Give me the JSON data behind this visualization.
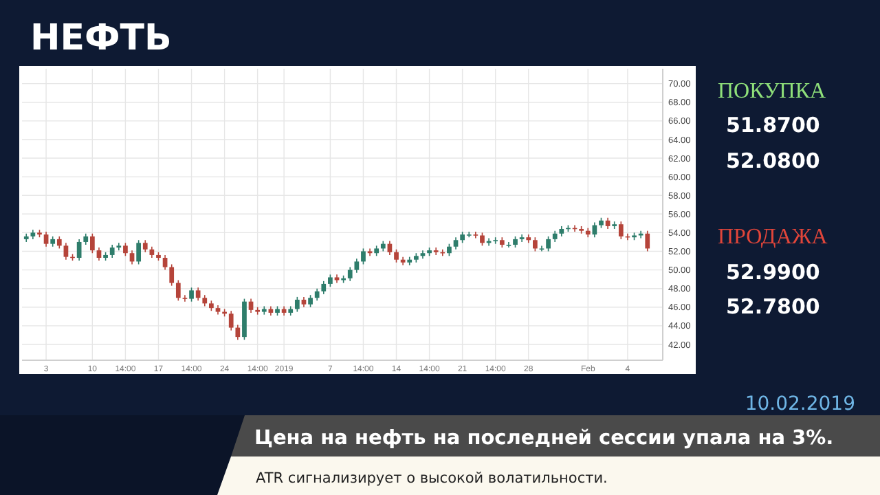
{
  "chart_data": {
    "type": "candlestick",
    "title": "НЕФТЬ",
    "categories": [
      null,
      null,
      null,
      "3",
      null,
      null,
      null,
      null,
      null,
      null,
      "10",
      null,
      null,
      null,
      null,
      "14:00",
      null,
      null,
      null,
      null,
      "17",
      null,
      null,
      null,
      null,
      "14:00",
      null,
      null,
      null,
      null,
      "24",
      null,
      null,
      null,
      null,
      "14:00",
      null,
      null,
      null,
      "2019",
      null,
      null,
      null,
      null,
      null,
      null,
      "7",
      null,
      null,
      null,
      null,
      "14:00",
      null,
      null,
      null,
      null,
      "14",
      null,
      null,
      null,
      null,
      "14:00",
      null,
      null,
      null,
      null,
      "21",
      null,
      null,
      null,
      null,
      "14:00",
      null,
      null,
      null,
      null,
      "28",
      null,
      null,
      null,
      null,
      null,
      null,
      null,
      null,
      "Feb",
      null,
      null,
      null,
      null,
      null,
      "4",
      null,
      null,
      null
    ],
    "ohlc": [
      [
        53.3,
        53.9,
        53.0,
        53.6
      ],
      [
        53.6,
        54.3,
        53.3,
        54.0
      ],
      [
        54.0,
        54.3,
        53.5,
        53.8
      ],
      [
        53.8,
        54.1,
        52.5,
        52.8
      ],
      [
        52.8,
        53.6,
        52.5,
        53.3
      ],
      [
        53.3,
        53.6,
        52.3,
        52.6
      ],
      [
        52.6,
        52.9,
        51.1,
        51.4
      ],
      [
        51.4,
        51.7,
        51.0,
        51.3
      ],
      [
        51.3,
        53.3,
        51.0,
        53.0
      ],
      [
        53.0,
        53.9,
        52.7,
        53.6
      ],
      [
        53.6,
        53.9,
        51.8,
        52.1
      ],
      [
        52.1,
        52.4,
        51.0,
        51.3
      ],
      [
        51.3,
        51.9,
        51.0,
        51.6
      ],
      [
        51.6,
        52.7,
        51.3,
        52.4
      ],
      [
        52.4,
        52.9,
        52.1,
        52.6
      ],
      [
        52.6,
        52.9,
        51.5,
        51.8
      ],
      [
        51.8,
        52.1,
        50.6,
        50.9
      ],
      [
        50.9,
        53.2,
        50.6,
        52.9
      ],
      [
        52.9,
        53.2,
        51.9,
        52.2
      ],
      [
        52.2,
        52.5,
        51.3,
        51.6
      ],
      [
        51.6,
        51.9,
        51.0,
        51.3
      ],
      [
        51.3,
        51.6,
        50.0,
        50.3
      ],
      [
        50.3,
        50.6,
        48.3,
        48.6
      ],
      [
        48.6,
        48.9,
        46.7,
        47.0
      ],
      [
        47.0,
        47.3,
        46.6,
        46.9
      ],
      [
        46.9,
        48.1,
        46.6,
        47.8
      ],
      [
        47.8,
        48.1,
        46.7,
        47.0
      ],
      [
        47.0,
        47.3,
        46.1,
        46.4
      ],
      [
        46.4,
        46.7,
        45.6,
        45.9
      ],
      [
        45.9,
        46.2,
        45.2,
        45.5
      ],
      [
        45.5,
        45.8,
        45.0,
        45.3
      ],
      [
        45.3,
        45.6,
        43.5,
        43.8
      ],
      [
        43.8,
        44.1,
        42.5,
        42.8
      ],
      [
        42.8,
        46.9,
        42.5,
        46.6
      ],
      [
        46.6,
        46.9,
        45.4,
        45.7
      ],
      [
        45.7,
        46.0,
        45.2,
        45.5
      ],
      [
        45.5,
        46.1,
        45.2,
        45.8
      ],
      [
        45.8,
        46.1,
        45.1,
        45.4
      ],
      [
        45.4,
        46.1,
        45.1,
        45.8
      ],
      [
        45.8,
        46.1,
        45.1,
        45.4
      ],
      [
        45.4,
        46.1,
        45.1,
        45.8
      ],
      [
        45.8,
        47.1,
        45.5,
        46.8
      ],
      [
        46.8,
        47.1,
        46.0,
        46.3
      ],
      [
        46.3,
        47.3,
        46.0,
        47.0
      ],
      [
        47.0,
        48.0,
        46.7,
        47.7
      ],
      [
        47.7,
        48.8,
        47.4,
        48.5
      ],
      [
        48.5,
        49.5,
        48.2,
        49.2
      ],
      [
        49.2,
        49.5,
        48.6,
        48.9
      ],
      [
        48.9,
        49.4,
        48.6,
        49.1
      ],
      [
        49.1,
        50.3,
        48.8,
        50.0
      ],
      [
        50.0,
        51.2,
        49.7,
        50.9
      ],
      [
        50.9,
        52.3,
        50.6,
        52.0
      ],
      [
        52.0,
        52.3,
        51.5,
        51.8
      ],
      [
        51.8,
        52.6,
        51.5,
        52.3
      ],
      [
        52.3,
        53.1,
        52.0,
        52.8
      ],
      [
        52.8,
        53.1,
        51.6,
        51.9
      ],
      [
        51.9,
        52.2,
        50.8,
        51.1
      ],
      [
        51.1,
        51.4,
        50.5,
        50.8
      ],
      [
        50.8,
        51.4,
        50.5,
        51.1
      ],
      [
        51.1,
        51.8,
        50.8,
        51.5
      ],
      [
        51.5,
        52.1,
        51.2,
        51.8
      ],
      [
        51.8,
        52.4,
        51.5,
        52.1
      ],
      [
        52.1,
        52.4,
        51.6,
        51.9
      ],
      [
        51.9,
        52.2,
        51.5,
        51.8
      ],
      [
        51.8,
        52.8,
        51.5,
        52.5
      ],
      [
        52.5,
        53.5,
        52.2,
        53.2
      ],
      [
        53.2,
        54.1,
        52.9,
        53.8
      ],
      [
        53.8,
        54.1,
        53.5,
        53.8
      ],
      [
        53.8,
        54.1,
        53.4,
        53.7
      ],
      [
        53.7,
        54.0,
        52.6,
        52.9
      ],
      [
        52.9,
        53.4,
        52.6,
        53.1
      ],
      [
        53.1,
        53.5,
        52.8,
        53.2
      ],
      [
        53.2,
        53.5,
        52.4,
        52.7
      ],
      [
        52.7,
        53.0,
        52.4,
        52.7
      ],
      [
        52.7,
        53.6,
        52.4,
        53.3
      ],
      [
        53.3,
        53.8,
        53.0,
        53.5
      ],
      [
        53.5,
        53.8,
        52.9,
        53.2
      ],
      [
        53.2,
        53.5,
        52.0,
        52.3
      ],
      [
        52.3,
        52.6,
        52.0,
        52.3
      ],
      [
        52.3,
        53.6,
        52.0,
        53.3
      ],
      [
        53.3,
        54.2,
        53.0,
        53.9
      ],
      [
        53.9,
        54.7,
        53.6,
        54.4
      ],
      [
        54.4,
        54.8,
        54.1,
        54.5
      ],
      [
        54.5,
        54.8,
        54.1,
        54.4
      ],
      [
        54.4,
        54.7,
        53.9,
        54.2
      ],
      [
        54.2,
        54.5,
        53.5,
        53.8
      ],
      [
        53.8,
        55.1,
        53.5,
        54.8
      ],
      [
        54.8,
        55.6,
        54.5,
        55.3
      ],
      [
        55.3,
        55.6,
        54.4,
        54.7
      ],
      [
        54.7,
        55.2,
        54.4,
        54.9
      ],
      [
        54.9,
        55.2,
        53.3,
        53.6
      ],
      [
        53.6,
        53.9,
        53.2,
        53.5
      ],
      [
        53.5,
        54.0,
        53.2,
        53.7
      ],
      [
        53.7,
        54.2,
        53.4,
        53.9
      ],
      [
        53.9,
        54.2,
        52.0,
        52.3
      ]
    ],
    "ylim": [
      40.3,
      71.6
    ],
    "yticks": [
      {
        "value": 42,
        "label": "42.00"
      },
      {
        "value": 44,
        "label": "44.00"
      },
      {
        "value": 46,
        "label": "46.00"
      },
      {
        "value": 48,
        "label": "48.00"
      },
      {
        "value": 50,
        "label": "50.00"
      },
      {
        "value": 52,
        "label": "52.00"
      },
      {
        "value": 54,
        "label": "54.00"
      },
      {
        "value": 56,
        "label": "56.00"
      },
      {
        "value": 58,
        "label": "58.00"
      },
      {
        "value": 60,
        "label": "60.00"
      },
      {
        "value": 62,
        "label": "62.00"
      },
      {
        "value": 64,
        "label": "64.00"
      },
      {
        "value": 66,
        "label": "66.00"
      },
      {
        "value": 68,
        "label": "68.00"
      },
      {
        "value": 70,
        "label": "70.00"
      }
    ],
    "grid": true,
    "annotations": [
      "ПОКУПКА",
      "51.8700",
      "52.0800",
      "ПРОДАЖА",
      "52.9900",
      "52.7800",
      "10.02.2019",
      "Цена на нефть на последней сессии упала на 3%.",
      "ATR сигнализирует о высокой волатильности."
    ]
  }
}
